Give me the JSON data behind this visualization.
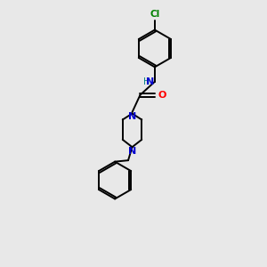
{
  "background_color": "#e8e8e8",
  "bond_color": "#000000",
  "N_color": "#0000cd",
  "O_color": "#ff0000",
  "Cl_color": "#008000",
  "H_color": "#008080",
  "figsize": [
    3.0,
    3.0
  ],
  "dpi": 100,
  "xlim": [
    0,
    10
  ],
  "ylim": [
    0,
    10
  ]
}
